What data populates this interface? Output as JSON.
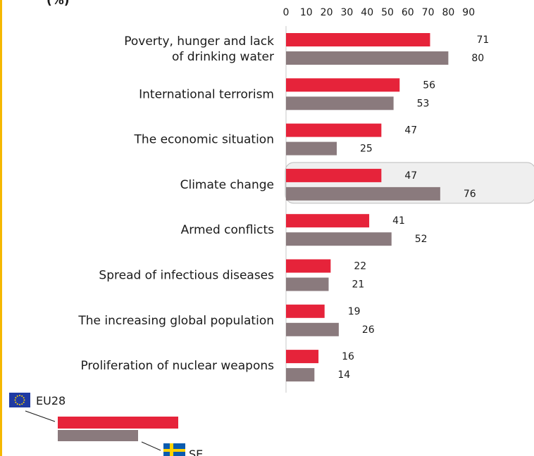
{
  "unit_label": "(%)",
  "chart_data": {
    "type": "bar",
    "orientation": "horizontal",
    "categories": [
      [
        "Poverty, hunger and lack",
        "of drinking water"
      ],
      [
        "International terrorism"
      ],
      [
        "The economic situation"
      ],
      [
        "Climate change"
      ],
      [
        "Armed conflicts"
      ],
      [
        "Spread of infectious diseases"
      ],
      [
        "The increasing global population"
      ],
      [
        "Proliferation of nuclear weapons"
      ]
    ],
    "series": [
      {
        "name": "EU28",
        "color": "#e6233a",
        "values": [
          71,
          56,
          47,
          47,
          41,
          22,
          19,
          16
        ]
      },
      {
        "name": "SE",
        "color": "#8a7a7d",
        "values": [
          80,
          53,
          25,
          76,
          52,
          21,
          26,
          14
        ]
      }
    ],
    "ticks": [
      "0",
      "10",
      "20",
      "30",
      "40",
      "50",
      "60",
      "70",
      "80",
      "90"
    ],
    "xlim": [
      0,
      90
    ],
    "highlight_category_index": 3,
    "legend_placement": "bottom-left",
    "legend_icons": [
      "eu-flag-icon",
      "sweden-flag-icon"
    ]
  }
}
